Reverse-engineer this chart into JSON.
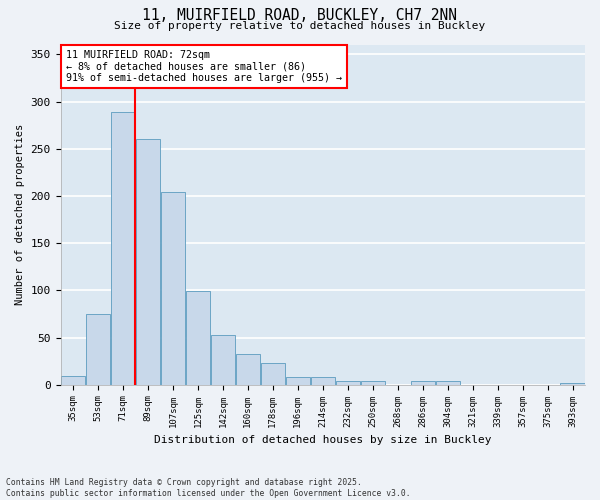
{
  "title_line1": "11, MUIRFIELD ROAD, BUCKLEY, CH7 2NN",
  "title_line2": "Size of property relative to detached houses in Buckley",
  "xlabel": "Distribution of detached houses by size in Buckley",
  "ylabel": "Number of detached properties",
  "bar_color": "#c8d8ea",
  "bar_edge_color": "#5b9bbf",
  "vline_color": "red",
  "vline_index": 2,
  "annotation_text": "11 MUIRFIELD ROAD: 72sqm\n← 8% of detached houses are smaller (86)\n91% of semi-detached houses are larger (955) →",
  "annotation_box_color": "white",
  "annotation_box_edge": "red",
  "categories": [
    "35sqm",
    "53sqm",
    "71sqm",
    "89sqm",
    "107sqm",
    "125sqm",
    "142sqm",
    "160sqm",
    "178sqm",
    "196sqm",
    "214sqm",
    "232sqm",
    "250sqm",
    "268sqm",
    "286sqm",
    "304sqm",
    "321sqm",
    "339sqm",
    "357sqm",
    "375sqm",
    "393sqm"
  ],
  "values": [
    9,
    75,
    289,
    260,
    204,
    99,
    53,
    32,
    23,
    8,
    8,
    4,
    4,
    0,
    4,
    4,
    0,
    0,
    0,
    0,
    2
  ],
  "ylim": [
    0,
    360
  ],
  "yticks": [
    0,
    50,
    100,
    150,
    200,
    250,
    300,
    350
  ],
  "footer": "Contains HM Land Registry data © Crown copyright and database right 2025.\nContains public sector information licensed under the Open Government Licence v3.0.",
  "bg_color": "#eef2f7",
  "plot_bg_color": "#dce8f2",
  "grid_color": "white"
}
